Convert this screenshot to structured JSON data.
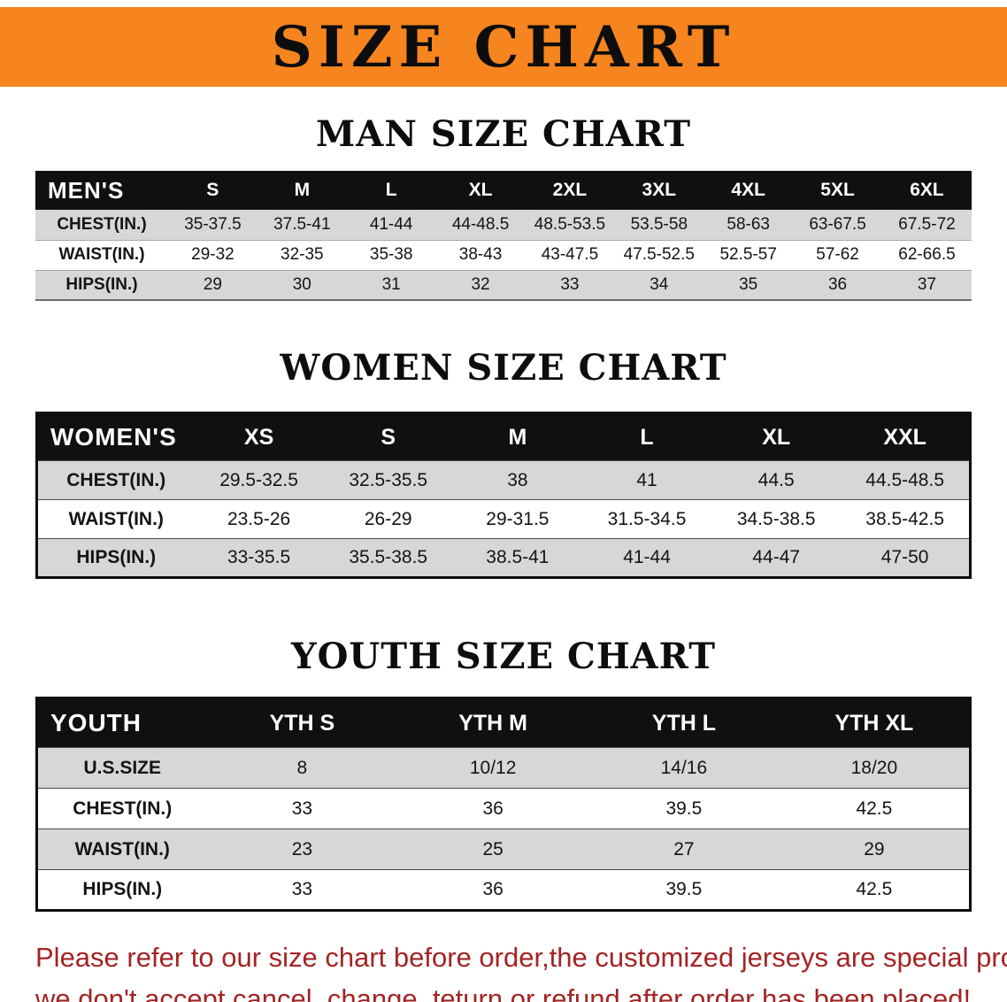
{
  "banner": {
    "title": "SIZE CHART",
    "background_color": "#F6851F",
    "text_color": "#0d0d0d"
  },
  "sections": [
    {
      "heading": "MAN SIZE CHART",
      "table": {
        "header_label": "MEN'S",
        "columns": [
          "S",
          "M",
          "L",
          "XL",
          "2XL",
          "3XL",
          "4XL",
          "5XL",
          "6XL"
        ],
        "rows": [
          {
            "label": "CHEST(IN.)",
            "values": [
              "35-37.5",
              "37.5-41",
              "41-44",
              "44-48.5",
              "48.5-53.5",
              "53.5-58",
              "58-63",
              "63-67.5",
              "67.5-72"
            ]
          },
          {
            "label": "WAIST(IN.)",
            "values": [
              "29-32",
              "32-35",
              "35-38",
              "38-43",
              "43-47.5",
              "47.5-52.5",
              "52.5-57",
              "57-62",
              "62-66.5"
            ]
          },
          {
            "label": "HIPS(IN.)",
            "values": [
              "29",
              "30",
              "31",
              "32",
              "33",
              "34",
              "35",
              "36",
              "37"
            ]
          }
        ]
      }
    },
    {
      "heading": "WOMEN SIZE CHART",
      "table": {
        "header_label": "WOMEN'S",
        "columns": [
          "XS",
          "S",
          "M",
          "L",
          "XL",
          "XXL"
        ],
        "rows": [
          {
            "label": "CHEST(IN.)",
            "values": [
              "29.5-32.5",
              "32.5-35.5",
              "38",
              "41",
              "44.5",
              "44.5-48.5"
            ]
          },
          {
            "label": "WAIST(IN.)",
            "values": [
              "23.5-26",
              "26-29",
              "29-31.5",
              "31.5-34.5",
              "34.5-38.5",
              "38.5-42.5"
            ]
          },
          {
            "label": "HIPS(IN.)",
            "values": [
              "33-35.5",
              "35.5-38.5",
              "38.5-41",
              "41-44",
              "44-47",
              "47-50"
            ]
          }
        ]
      }
    },
    {
      "heading": "YOUTH SIZE CHART",
      "table": {
        "header_label": "YOUTH",
        "columns": [
          "YTH S",
          "YTH M",
          "YTH L",
          "YTH XL"
        ],
        "rows": [
          {
            "label": "U.S.SIZE",
            "values": [
              "8",
              "10/12",
              "14/16",
              "18/20"
            ]
          },
          {
            "label": "CHEST(IN.)",
            "values": [
              "33",
              "36",
              "39.5",
              "42.5"
            ]
          },
          {
            "label": "WAIST(IN.)",
            "values": [
              "23",
              "25",
              "27",
              "29"
            ]
          },
          {
            "label": "HIPS(IN.)",
            "values": [
              "33",
              "36",
              "39.5",
              "42.5"
            ]
          }
        ]
      }
    }
  ],
  "footer_note": {
    "color": "#A32424",
    "lines": [
      "Please refer to our size chart before order,the customized jerseys are special products,",
      "we don't accept cancel, change, teturn or refund after order has been placed!"
    ]
  }
}
